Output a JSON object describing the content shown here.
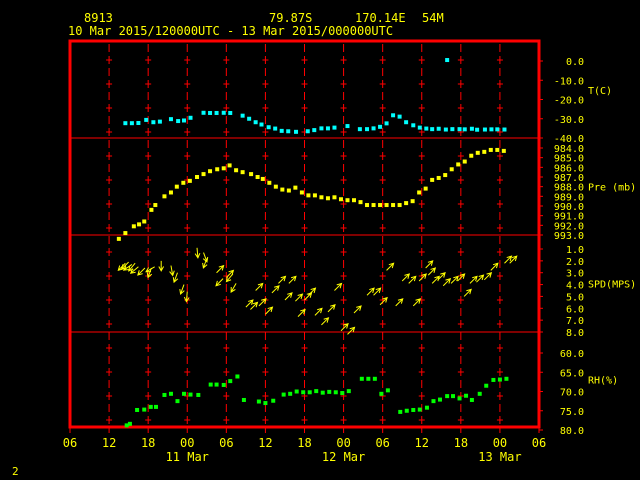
{
  "header": {
    "station_id": "8913",
    "lat": "79.87S",
    "lon": "170.14E",
    "elev": "54M",
    "time_range": "10 Mar 2015/120000UTC - 13 Mar 2015/000000UTC"
  },
  "page_number": "2",
  "colors": {
    "background": "#000000",
    "frame": "#ff0000",
    "text": "#ffff00",
    "temperature": "#00ffff",
    "pressure": "#ffff00",
    "wind": "#ffff00",
    "rh": "#00ff00"
  },
  "chart_data": {
    "type": "scatter",
    "x_axis": {
      "unit": "hours since 10 Mar 00UTC",
      "range": [
        6,
        78
      ],
      "tick_hours": [
        6,
        12,
        18,
        24,
        30,
        36,
        42,
        48,
        54,
        60,
        66,
        72,
        78
      ],
      "tick_labels": [
        "06",
        "12",
        "18",
        "00",
        "06",
        "12",
        "18",
        "00",
        "06",
        "12",
        "18",
        "00",
        "06"
      ],
      "date_labels": [
        {
          "text": "11 Mar",
          "at_hour": 24
        },
        {
          "text": "12 Mar",
          "at_hour": 48
        },
        {
          "text": "13 Mar",
          "at_hour": 72
        }
      ]
    },
    "panels": [
      {
        "id": "temperature",
        "label": "T(C)",
        "range": [
          -40,
          0
        ],
        "ticks": [
          0,
          -10,
          -20,
          -30,
          -40
        ],
        "tick_labels": [
          "0.0",
          "-10.0",
          "-20.0",
          "-30.0",
          "-40.0"
        ],
        "color": "#00ffff",
        "points": [
          [
            14.5,
            -32.3
          ],
          [
            15.5,
            -32.3
          ],
          [
            16.5,
            -32.2
          ],
          [
            17.7,
            -30.6
          ],
          [
            18.8,
            -31.8
          ],
          [
            19.8,
            -31.5
          ],
          [
            21.5,
            -30.2
          ],
          [
            22.6,
            -31.2
          ],
          [
            23.5,
            -30.9
          ],
          [
            24.5,
            -29.5
          ],
          [
            26.5,
            -26.9
          ],
          [
            27.5,
            -27.0
          ],
          [
            28.5,
            -27.0
          ],
          [
            29.6,
            -26.9
          ],
          [
            30.6,
            -27.0
          ],
          [
            32.5,
            -28.4
          ],
          [
            33.5,
            -30.0
          ],
          [
            34.5,
            -31.8
          ],
          [
            35.4,
            -33.0
          ],
          [
            36.5,
            -34.4
          ],
          [
            37.5,
            -35.1
          ],
          [
            38.5,
            -36.3
          ],
          [
            39.5,
            -36.5
          ],
          [
            40.7,
            -36.8
          ],
          [
            42.5,
            -36.5
          ],
          [
            43.5,
            -35.9
          ],
          [
            44.6,
            -35.0
          ],
          [
            45.6,
            -35.0
          ],
          [
            46.6,
            -34.6
          ],
          [
            48.6,
            -33.8
          ],
          [
            50.5,
            -35.4
          ],
          [
            51.6,
            -35.4
          ],
          [
            52.6,
            -35.0
          ],
          [
            53.6,
            -34.2
          ],
          [
            54.6,
            -32.4
          ],
          [
            55.6,
            -28.2
          ],
          [
            56.6,
            -28.9
          ],
          [
            57.6,
            -31.8
          ],
          [
            58.7,
            -33.4
          ],
          [
            59.7,
            -34.6
          ],
          [
            60.7,
            -35.1
          ],
          [
            61.6,
            -35.4
          ],
          [
            62.6,
            -35.2
          ],
          [
            63.7,
            -35.6
          ],
          [
            64.7,
            -35.4
          ],
          [
            65.8,
            -35.4
          ],
          [
            66.6,
            -35.5
          ],
          [
            67.7,
            -35.2
          ],
          [
            68.5,
            -35.7
          ],
          [
            69.7,
            -35.6
          ],
          [
            70.7,
            -35.5
          ],
          [
            71.6,
            -35.5
          ],
          [
            72.7,
            -35.6
          ],
          [
            63.9,
            0.5
          ]
        ]
      },
      {
        "id": "pressure",
        "label": "Pre (mb)",
        "range": [
          984,
          993.5
        ],
        "ticks": [
          984,
          985,
          986,
          987,
          988,
          989,
          990,
          991,
          992,
          993
        ],
        "tick_labels": [
          "984.0",
          "985.0",
          "986.0",
          "987.0",
          "988.0",
          "989.0",
          "990.0",
          "991.0",
          "992.0",
          "993.0"
        ],
        "color": "#ffff00",
        "points": [
          [
            13.5,
            993.4
          ],
          [
            14.5,
            992.8
          ],
          [
            15.8,
            992.1
          ],
          [
            16.6,
            991.9
          ],
          [
            17.4,
            991.6
          ],
          [
            18.5,
            990.4
          ],
          [
            19.1,
            989.9
          ],
          [
            20.5,
            989.0
          ],
          [
            21.5,
            988.6
          ],
          [
            22.4,
            988.0
          ],
          [
            23.4,
            987.6
          ],
          [
            24.4,
            987.4
          ],
          [
            25.5,
            987.0
          ],
          [
            26.5,
            986.7
          ],
          [
            27.5,
            986.4
          ],
          [
            28.6,
            986.2
          ],
          [
            29.6,
            986.1
          ],
          [
            30.5,
            985.8
          ],
          [
            31.5,
            986.3
          ],
          [
            32.5,
            986.5
          ],
          [
            33.8,
            986.7
          ],
          [
            34.8,
            987.0
          ],
          [
            35.6,
            987.2
          ],
          [
            36.6,
            987.6
          ],
          [
            37.6,
            988.0
          ],
          [
            38.6,
            988.3
          ],
          [
            39.6,
            988.4
          ],
          [
            40.6,
            988.1
          ],
          [
            41.6,
            988.6
          ],
          [
            42.6,
            988.9
          ],
          [
            43.6,
            988.9
          ],
          [
            44.6,
            989.1
          ],
          [
            45.6,
            989.2
          ],
          [
            46.6,
            989.1
          ],
          [
            47.6,
            989.3
          ],
          [
            48.6,
            989.4
          ],
          [
            49.6,
            989.4
          ],
          [
            50.6,
            989.6
          ],
          [
            51.6,
            989.9
          ],
          [
            52.6,
            989.9
          ],
          [
            53.6,
            989.9
          ],
          [
            54.6,
            989.9
          ],
          [
            55.6,
            989.9
          ],
          [
            56.6,
            989.9
          ],
          [
            57.6,
            989.7
          ],
          [
            58.6,
            989.5
          ],
          [
            59.6,
            988.6
          ],
          [
            60.6,
            988.2
          ],
          [
            61.6,
            987.3
          ],
          [
            62.6,
            987.1
          ],
          [
            63.6,
            986.8
          ],
          [
            64.6,
            986.2
          ],
          [
            65.6,
            985.7
          ],
          [
            66.6,
            985.4
          ],
          [
            67.6,
            984.8
          ],
          [
            68.6,
            984.5
          ],
          [
            69.6,
            984.4
          ],
          [
            70.6,
            984.2
          ],
          [
            71.6,
            984.2
          ],
          [
            72.6,
            984.3
          ]
        ]
      },
      {
        "id": "wind",
        "label": "SPD(MPS)",
        "range": [
          1,
          9
        ],
        "ticks": [
          1,
          2,
          3,
          4,
          5,
          6,
          7,
          8
        ],
        "tick_labels": [
          "1.0",
          "2.0",
          "3.0",
          "4.0",
          "5.0",
          "6.0",
          "7.0",
          "8.0"
        ],
        "color": "#ffff00",
        "points": [
          [
            14.5,
            2.2,
            225
          ],
          [
            15.0,
            2.1,
            225
          ],
          [
            15.5,
            2.3,
            235
          ],
          [
            16.0,
            2.2,
            220
          ],
          [
            16.5,
            2.5,
            230
          ],
          [
            17.5,
            2.6,
            225
          ],
          [
            18.5,
            2.6,
            200
          ],
          [
            19.0,
            2.5,
            240
          ],
          [
            20.0,
            2.0,
            180
          ],
          [
            21.5,
            2.4,
            170
          ],
          [
            22.5,
            3.0,
            200
          ],
          [
            23.5,
            4.0,
            200
          ],
          [
            24.0,
            4.6,
            185
          ],
          [
            25.5,
            0.9,
            175
          ],
          [
            26.5,
            1.3,
            160
          ],
          [
            27.0,
            1.8,
            200
          ],
          [
            28.5,
            3.0,
            45
          ],
          [
            29.5,
            3.5,
            225
          ],
          [
            30.0,
            3.4,
            45
          ],
          [
            31.0,
            3.1,
            220
          ],
          [
            31.5,
            3.9,
            210
          ],
          [
            33.0,
            5.9,
            45
          ],
          [
            33.7,
            6.1,
            45
          ],
          [
            34.5,
            4.5,
            45
          ],
          [
            35.0,
            5.8,
            45
          ],
          [
            36.0,
            6.5,
            45
          ],
          [
            37.0,
            4.7,
            45
          ],
          [
            38.0,
            3.9,
            45
          ],
          [
            39.0,
            5.3,
            45
          ],
          [
            39.6,
            3.9,
            45
          ],
          [
            40.6,
            5.4,
            45
          ],
          [
            41.0,
            6.7,
            45
          ],
          [
            42.0,
            5.3,
            45
          ],
          [
            42.6,
            4.9,
            45
          ],
          [
            43.6,
            6.6,
            45
          ],
          [
            44.6,
            7.4,
            45
          ],
          [
            45.6,
            6.3,
            45
          ],
          [
            46.6,
            4.5,
            45
          ],
          [
            47.6,
            7.9,
            45
          ],
          [
            48.6,
            8.2,
            45
          ],
          [
            49.6,
            6.4,
            45
          ],
          [
            51.6,
            4.9,
            45
          ],
          [
            52.6,
            4.9,
            45
          ],
          [
            53.6,
            5.7,
            45
          ],
          [
            54.6,
            2.8,
            45
          ],
          [
            56.0,
            5.8,
            45
          ],
          [
            57.0,
            3.7,
            45
          ],
          [
            58.0,
            3.9,
            45
          ],
          [
            58.7,
            5.8,
            45
          ],
          [
            59.6,
            3.7,
            45
          ],
          [
            60.6,
            2.6,
            45
          ],
          [
            61.0,
            3.2,
            45
          ],
          [
            61.6,
            3.9,
            45
          ],
          [
            62.5,
            3.6,
            45
          ],
          [
            63.3,
            4.1,
            45
          ],
          [
            64.5,
            3.9,
            45
          ],
          [
            65.5,
            3.7,
            45
          ],
          [
            66.5,
            5.0,
            45
          ],
          [
            67.4,
            3.9,
            45
          ],
          [
            68.4,
            3.8,
            45
          ],
          [
            69.6,
            3.6,
            45
          ],
          [
            70.6,
            2.8,
            45
          ],
          [
            72.7,
            2.2,
            45
          ],
          [
            73.5,
            2.2,
            45
          ]
        ]
      },
      {
        "id": "rh",
        "label": "RH(%)",
        "range": [
          60,
          80
        ],
        "ticks": [
          60,
          65,
          70,
          75,
          80
        ],
        "tick_labels": [
          "60.0",
          "65.0",
          "70.0",
          "75.0",
          "80.0"
        ],
        "color": "#00ff00",
        "points": [
          [
            14.7,
            78.8
          ],
          [
            15.2,
            78.4
          ],
          [
            16.3,
            74.8
          ],
          [
            17.4,
            74.7
          ],
          [
            18.4,
            74.0
          ],
          [
            19.2,
            74.0
          ],
          [
            20.5,
            70.9
          ],
          [
            21.5,
            70.6
          ],
          [
            22.5,
            72.5
          ],
          [
            23.5,
            70.6
          ],
          [
            24.5,
            70.8
          ],
          [
            25.7,
            70.9
          ],
          [
            27.6,
            68.2
          ],
          [
            28.5,
            68.2
          ],
          [
            29.6,
            68.3
          ],
          [
            30.6,
            67.3
          ],
          [
            31.7,
            66.1
          ],
          [
            32.7,
            72.2
          ],
          [
            35.0,
            72.6
          ],
          [
            36.0,
            73.0
          ],
          [
            37.2,
            72.4
          ],
          [
            38.8,
            70.8
          ],
          [
            39.8,
            70.6
          ],
          [
            40.8,
            70.0
          ],
          [
            41.8,
            70.2
          ],
          [
            42.8,
            70.2
          ],
          [
            43.8,
            69.9
          ],
          [
            44.8,
            70.3
          ],
          [
            45.8,
            70.1
          ],
          [
            46.8,
            70.2
          ],
          [
            47.8,
            70.4
          ],
          [
            48.8,
            69.9
          ],
          [
            50.8,
            66.7
          ],
          [
            51.8,
            66.7
          ],
          [
            52.8,
            66.7
          ],
          [
            53.8,
            70.6
          ],
          [
            54.8,
            69.7
          ],
          [
            56.7,
            75.3
          ],
          [
            57.7,
            75.0
          ],
          [
            58.7,
            74.8
          ],
          [
            59.7,
            74.7
          ],
          [
            60.8,
            74.2
          ],
          [
            61.8,
            72.5
          ],
          [
            62.8,
            72.1
          ],
          [
            63.9,
            71.2
          ],
          [
            64.8,
            71.2
          ],
          [
            65.8,
            71.8
          ],
          [
            66.8,
            71.1
          ],
          [
            67.7,
            72.2
          ],
          [
            68.9,
            70.6
          ],
          [
            69.9,
            68.5
          ],
          [
            71.0,
            67.0
          ],
          [
            72.0,
            66.9
          ],
          [
            73.0,
            66.7
          ]
        ]
      }
    ]
  }
}
